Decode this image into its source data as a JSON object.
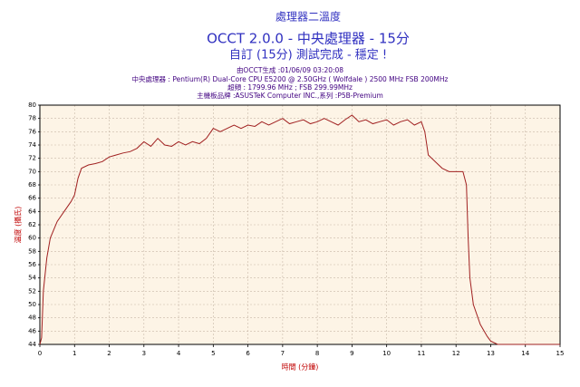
{
  "chart_data": {
    "type": "line",
    "title": "處理器二溫度",
    "subtitle": [
      "OCCT 2.0.0 - 中央處理器 - 15分",
      "自訂 (15分) 測試完成 - 穩定 !"
    ],
    "annotations": [
      "由OCCT生成 :01/06/09 03:20:08",
      "中央處理器 : Pentium(R) Dual-Core CPU E5200 @ 2.50GHz ( Wolfdale ) 2500 MHz FSB 200MHz",
      "超頻 : 1799.96 MHz ; FSB 299.99MHz",
      "主機板品牌 :ASUSTeK Computer INC.,系列 :P5B-Premium"
    ],
    "xlabel": "時間 (分鐘)",
    "ylabel": "溫度 (攝氏)",
    "color": "#a02020",
    "x": [
      0,
      0.05,
      0.1,
      0.2,
      0.3,
      0.5,
      0.7,
      0.9,
      1.0,
      1.1,
      1.2,
      1.4,
      1.6,
      1.8,
      2.0,
      2.2,
      2.4,
      2.6,
      2.8,
      3.0,
      3.2,
      3.4,
      3.6,
      3.8,
      4.0,
      4.2,
      4.4,
      4.6,
      4.8,
      5.0,
      5.2,
      5.4,
      5.6,
      5.8,
      6.0,
      6.2,
      6.4,
      6.6,
      6.8,
      7.0,
      7.2,
      7.4,
      7.6,
      7.8,
      8.0,
      8.2,
      8.4,
      8.6,
      8.8,
      9.0,
      9.2,
      9.4,
      9.6,
      9.8,
      10.0,
      10.2,
      10.4,
      10.6,
      10.8,
      11.0,
      11.1,
      11.2,
      11.4,
      11.6,
      11.8,
      12.0,
      12.2,
      12.3,
      12.35,
      12.4,
      12.5,
      12.7,
      12.9,
      13.0,
      13.2,
      15.0
    ],
    "values": [
      44,
      45,
      52,
      57,
      60,
      62.5,
      64,
      65.5,
      66.5,
      69,
      70.5,
      71,
      71.2,
      71.5,
      72.2,
      72.5,
      72.8,
      73,
      73.5,
      74.5,
      73.8,
      75,
      74,
      73.8,
      74.5,
      74,
      74.5,
      74.2,
      75,
      76.5,
      76,
      76.5,
      77,
      76.5,
      77,
      76.8,
      77.5,
      77,
      77.5,
      78,
      77.2,
      77.5,
      77.8,
      77.2,
      77.5,
      78,
      77.5,
      77,
      77.8,
      78.5,
      77.5,
      77.8,
      77.2,
      77.5,
      77.8,
      77,
      77.5,
      77.8,
      77,
      77.5,
      76,
      72.5,
      71.5,
      70.5,
      70,
      70,
      70,
      68,
      60,
      54,
      50,
      47,
      45.2,
      44.5,
      44,
      44
    ],
    "xlim": [
      0,
      15
    ],
    "xticks": [
      0,
      1,
      2,
      3,
      4,
      5,
      6,
      7,
      8,
      9,
      10,
      11,
      12,
      13,
      14,
      15
    ],
    "ylim": [
      44,
      80
    ],
    "yticks": [
      44,
      46,
      48,
      50,
      52,
      54,
      56,
      58,
      60,
      62,
      64,
      66,
      68,
      70,
      72,
      74,
      76,
      78,
      80
    ],
    "grid": true
  }
}
